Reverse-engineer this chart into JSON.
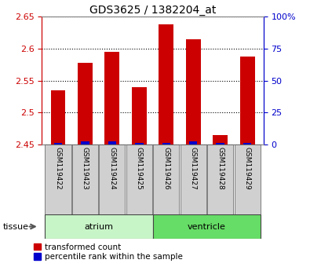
{
  "title": "GDS3625 / 1382204_at",
  "samples": [
    "GSM119422",
    "GSM119423",
    "GSM119424",
    "GSM119425",
    "GSM119426",
    "GSM119427",
    "GSM119428",
    "GSM119429"
  ],
  "red_values": [
    2.535,
    2.578,
    2.595,
    2.54,
    2.638,
    2.615,
    2.465,
    2.588
  ],
  "blue_values": [
    2.453,
    2.455,
    2.455,
    2.452,
    2.453,
    2.455,
    2.452,
    2.453
  ],
  "baseline": 2.45,
  "ylim_left": [
    2.45,
    2.65
  ],
  "ylim_right": [
    0,
    100
  ],
  "yticks_left": [
    2.45,
    2.5,
    2.55,
    2.6,
    2.65
  ],
  "yticks_right": [
    0,
    25,
    50,
    75,
    100
  ],
  "ytick_labels_right": [
    "0",
    "25",
    "50",
    "75",
    "100%"
  ],
  "tissue_groups": [
    {
      "label": "atrium",
      "start": 0,
      "end": 4,
      "color": "#c8f5c8"
    },
    {
      "label": "ventricle",
      "start": 4,
      "end": 8,
      "color": "#66dd66"
    }
  ],
  "red_color": "#cc0000",
  "blue_color": "#0000cc",
  "bar_width": 0.55,
  "grid_color": "#000000",
  "bg_plot": "#ffffff",
  "bg_sample_row": "#d0d0d0",
  "legend_red": "transformed count",
  "legend_blue": "percentile rank within the sample",
  "tissue_label": "tissue",
  "left_axis_color": "#cc0000",
  "right_axis_color": "#0000cc",
  "sample_fontsize": 6.5,
  "title_fontsize": 10
}
